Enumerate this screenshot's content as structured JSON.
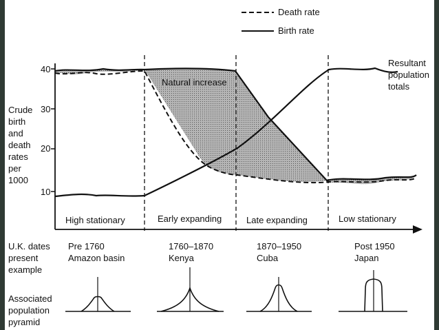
{
  "legend": {
    "death_rate": "Death rate",
    "birth_rate": "Birth rate"
  },
  "y_axis": {
    "label_lines": [
      "Crude",
      "birth",
      "and",
      "death",
      "rates",
      "per",
      "1000"
    ],
    "ticks": [
      "40",
      "30",
      "20",
      "10"
    ]
  },
  "annotations": {
    "natural_increase": "Natural increase",
    "resultant_lines": [
      "Resultant",
      "population",
      "totals"
    ]
  },
  "stages": [
    {
      "name": "High stationary",
      "dates": "Pre 1760",
      "example": "Amazon basin",
      "pyramid": "narrow-peak"
    },
    {
      "name": "Early expanding",
      "dates": "1760–1870",
      "example": "Kenya",
      "pyramid": "wide-concave"
    },
    {
      "name": "Late expanding",
      "dates": "1870–1950",
      "example": "Cuba",
      "pyramid": "bell"
    },
    {
      "name": "Low stationary",
      "dates": "Post 1950",
      "example": "Japan",
      "pyramid": "column"
    }
  ],
  "row_labels": {
    "dates_lines": [
      "U.K. dates",
      "present",
      "example"
    ],
    "pyramid_lines": [
      "Associated",
      "population",
      "pyramid"
    ]
  },
  "chart_data": {
    "type": "line",
    "x": [
      "High stationary",
      "Early expanding",
      "Late expanding",
      "Low stationary"
    ],
    "ylim": [
      5,
      42
    ],
    "ticks": [
      10,
      20,
      30,
      40
    ],
    "series": [
      {
        "name": "Death rate",
        "style": "dashed",
        "points": [
          [
            0,
            39.5
          ],
          [
            1,
            39.5
          ],
          [
            1.4,
            20
          ],
          [
            2,
            14
          ],
          [
            2.9,
            11.5
          ],
          [
            4,
            12
          ]
        ]
      },
      {
        "name": "Birth rate",
        "style": "solid",
        "points": [
          [
            0,
            8.5
          ],
          [
            1,
            8.5
          ],
          [
            2,
            20
          ],
          [
            3,
            39
          ],
          [
            4,
            38
          ]
        ]
      }
    ],
    "shaded_region": "Natural increase",
    "colors": {
      "shade": "#9a9a9a",
      "line": "#111111",
      "bg": "#ffffff"
    }
  }
}
